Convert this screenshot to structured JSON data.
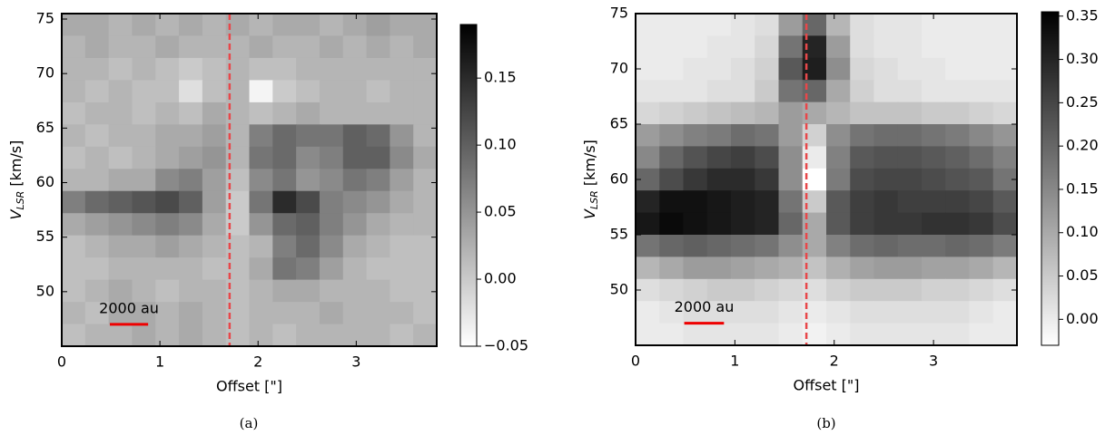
{
  "chart_data": [
    {
      "type": "heatmap",
      "caption": "(a)",
      "xlabel": "Offset [\"]",
      "ylabel": "V",
      "ylabel_subscript": "LSR",
      "ylabel_unit": " [km/s]",
      "xlim": [
        0,
        3.82
      ],
      "xticks": [
        0,
        1,
        2,
        3
      ],
      "ylim": [
        45,
        75.5
      ],
      "yticks": [
        50,
        55,
        60,
        65,
        70,
        75
      ],
      "colormap": [
        "#ffffff",
        "#000000"
      ],
      "clim": [
        -0.05,
        0.19
      ],
      "cticks": [
        {
          "value": -0.05,
          "label": "−0.05"
        },
        {
          "value": 0,
          "label": "0.00"
        },
        0.05,
        {
          "value": 0.1,
          "label": "0.10"
        },
        0.15
      ],
      "vline": {
        "x": 1.71,
        "color": "#e8474a"
      },
      "scalebar": {
        "label": "2000 au",
        "x": [
          0.49,
          0.88
        ],
        "y": 47,
        "color": "#ee0000"
      },
      "values": [
        [
          0.03,
          0.03,
          0.02,
          0.03,
          0.02,
          0.03,
          0.02,
          0.03,
          0.02,
          0.03,
          0.03,
          0.02,
          0.03,
          0.04,
          0.03,
          0.03
        ],
        [
          0.02,
          0.03,
          0.02,
          0.02,
          0.03,
          0.02,
          0.02,
          0.02,
          0.03,
          0.02,
          0.02,
          0.03,
          0.02,
          0.03,
          0.02,
          0.03
        ],
        [
          0.02,
          0.02,
          0.01,
          0.02,
          0.01,
          0.0,
          0.01,
          0.02,
          0.01,
          0.01,
          0.02,
          0.02,
          0.02,
          0.02,
          0.02,
          0.02
        ],
        [
          0.02,
          0.01,
          0.02,
          0.01,
          0.01,
          -0.02,
          0.01,
          0.02,
          -0.04,
          0.0,
          0.01,
          0.02,
          0.02,
          0.01,
          0.02,
          0.02
        ],
        [
          0.01,
          0.02,
          0.02,
          0.01,
          0.02,
          0.01,
          0.03,
          0.02,
          0.01,
          0.02,
          0.03,
          0.02,
          0.02,
          0.02,
          0.02,
          0.02
        ],
        [
          0.02,
          0.01,
          0.02,
          0.02,
          0.03,
          0.03,
          0.04,
          0.02,
          0.07,
          0.09,
          0.08,
          0.08,
          0.1,
          0.09,
          0.05,
          0.02
        ],
        [
          0.01,
          0.02,
          0.01,
          0.02,
          0.03,
          0.04,
          0.05,
          0.02,
          0.08,
          0.09,
          0.06,
          0.07,
          0.1,
          0.1,
          0.06,
          0.03
        ],
        [
          0.02,
          0.02,
          0.03,
          0.03,
          0.06,
          0.07,
          0.04,
          0.01,
          0.06,
          0.08,
          0.05,
          0.06,
          0.08,
          0.07,
          0.04,
          0.02
        ],
        [
          0.07,
          0.09,
          0.1,
          0.11,
          0.12,
          0.1,
          0.04,
          0.0,
          0.08,
          0.15,
          0.12,
          0.07,
          0.06,
          0.05,
          0.03,
          0.02
        ],
        [
          0.03,
          0.04,
          0.05,
          0.06,
          0.07,
          0.06,
          0.03,
          0.0,
          0.05,
          0.09,
          0.1,
          0.07,
          0.05,
          0.03,
          0.02,
          0.02
        ],
        [
          0.01,
          0.02,
          0.03,
          0.03,
          0.04,
          0.03,
          0.02,
          0.01,
          0.02,
          0.07,
          0.09,
          0.06,
          0.03,
          0.02,
          0.01,
          0.01
        ],
        [
          0.01,
          0.01,
          0.02,
          0.02,
          0.02,
          0.02,
          0.01,
          0.01,
          0.03,
          0.08,
          0.07,
          0.04,
          0.02,
          0.01,
          0.01,
          0.01
        ],
        [
          0.01,
          0.02,
          0.03,
          0.02,
          0.01,
          0.02,
          0.02,
          0.01,
          0.02,
          0.03,
          0.03,
          0.02,
          0.02,
          0.02,
          0.01,
          0.01
        ],
        [
          0.02,
          0.01,
          0.03,
          0.03,
          0.02,
          0.03,
          0.02,
          0.01,
          0.02,
          0.02,
          0.02,
          0.03,
          0.02,
          0.02,
          0.02,
          0.01
        ],
        [
          0.01,
          0.02,
          0.02,
          0.03,
          0.02,
          0.03,
          0.02,
          0.01,
          0.02,
          0.01,
          0.02,
          0.02,
          0.02,
          0.02,
          0.01,
          0.02
        ]
      ]
    },
    {
      "type": "heatmap",
      "caption": "(b)",
      "xlabel": "Offset [\"]",
      "ylabel": "V",
      "ylabel_subscript": "LSR",
      "ylabel_unit": " [km/s]",
      "xlim": [
        0,
        3.84
      ],
      "xticks": [
        0,
        1,
        2,
        3
      ],
      "ylim": [
        45,
        75
      ],
      "yticks": [
        50,
        55,
        60,
        65,
        70,
        75
      ],
      "colormap": [
        "#ffffff",
        "#000000"
      ],
      "clim": [
        -0.03,
        0.355
      ],
      "cticks": [
        {
          "value": 0,
          "label": "0.00"
        },
        0.05,
        {
          "value": 0.1,
          "label": "0.10"
        },
        0.15,
        {
          "value": 0.2,
          "label": "0.20"
        },
        0.25,
        {
          "value": 0.3,
          "label": "0.30"
        },
        0.35
      ],
      "vline": {
        "x": 1.72,
        "color": "#e8474a"
      },
      "scalebar": {
        "label": "2000 au",
        "x": [
          0.49,
          0.89
        ],
        "y": 47,
        "color": "#ee0000"
      },
      "values": [
        [
          0.0,
          0.0,
          0.0,
          0.0,
          0.01,
          0.02,
          0.12,
          0.2,
          0.08,
          0.02,
          0.01,
          0.01,
          0.0,
          0.0,
          0.0,
          0.0
        ],
        [
          0.0,
          0.0,
          0.0,
          0.01,
          0.01,
          0.03,
          0.18,
          0.3,
          0.12,
          0.02,
          0.01,
          0.01,
          0.0,
          0.0,
          0.0,
          0.0
        ],
        [
          0.0,
          0.0,
          0.01,
          0.01,
          0.02,
          0.04,
          0.22,
          0.31,
          0.14,
          0.03,
          0.02,
          0.01,
          0.01,
          0.0,
          0.0,
          0.0
        ],
        [
          0.01,
          0.01,
          0.01,
          0.02,
          0.02,
          0.05,
          0.18,
          0.2,
          0.1,
          0.04,
          0.02,
          0.02,
          0.01,
          0.01,
          0.01,
          0.01
        ],
        [
          0.03,
          0.04,
          0.05,
          0.06,
          0.07,
          0.08,
          0.12,
          0.1,
          0.08,
          0.06,
          0.06,
          0.06,
          0.05,
          0.05,
          0.04,
          0.03
        ],
        [
          0.12,
          0.14,
          0.16,
          0.17,
          0.19,
          0.18,
          0.12,
          0.04,
          0.14,
          0.18,
          0.19,
          0.19,
          0.18,
          0.17,
          0.15,
          0.13
        ],
        [
          0.15,
          0.2,
          0.23,
          0.25,
          0.26,
          0.24,
          0.14,
          0.0,
          0.16,
          0.22,
          0.23,
          0.23,
          0.22,
          0.21,
          0.19,
          0.16
        ],
        [
          0.2,
          0.24,
          0.27,
          0.29,
          0.29,
          0.27,
          0.14,
          -0.03,
          0.17,
          0.24,
          0.25,
          0.25,
          0.24,
          0.23,
          0.22,
          0.18
        ],
        [
          0.3,
          0.33,
          0.33,
          0.32,
          0.31,
          0.3,
          0.18,
          0.05,
          0.22,
          0.26,
          0.27,
          0.26,
          0.26,
          0.26,
          0.25,
          0.22
        ],
        [
          0.32,
          0.34,
          0.33,
          0.32,
          0.31,
          0.3,
          0.2,
          0.1,
          0.22,
          0.26,
          0.27,
          0.27,
          0.28,
          0.28,
          0.27,
          0.24
        ],
        [
          0.18,
          0.2,
          0.21,
          0.2,
          0.19,
          0.18,
          0.14,
          0.1,
          0.16,
          0.19,
          0.2,
          0.19,
          0.19,
          0.2,
          0.19,
          0.17
        ],
        [
          0.08,
          0.1,
          0.12,
          0.12,
          0.11,
          0.1,
          0.09,
          0.06,
          0.09,
          0.11,
          0.12,
          0.12,
          0.11,
          0.11,
          0.1,
          0.08
        ],
        [
          0.02,
          0.03,
          0.04,
          0.05,
          0.05,
          0.04,
          0.03,
          0.02,
          0.04,
          0.05,
          0.05,
          0.05,
          0.04,
          0.04,
          0.03,
          0.02
        ],
        [
          0.0,
          0.01,
          0.02,
          0.02,
          0.02,
          0.02,
          0.01,
          0.0,
          0.01,
          0.02,
          0.02,
          0.02,
          0.02,
          0.02,
          0.01,
          0.0
        ],
        [
          0.0,
          0.0,
          0.01,
          0.01,
          0.01,
          0.01,
          0.0,
          -0.01,
          0.0,
          0.01,
          0.01,
          0.01,
          0.01,
          0.01,
          0.0,
          0.0
        ]
      ]
    }
  ]
}
